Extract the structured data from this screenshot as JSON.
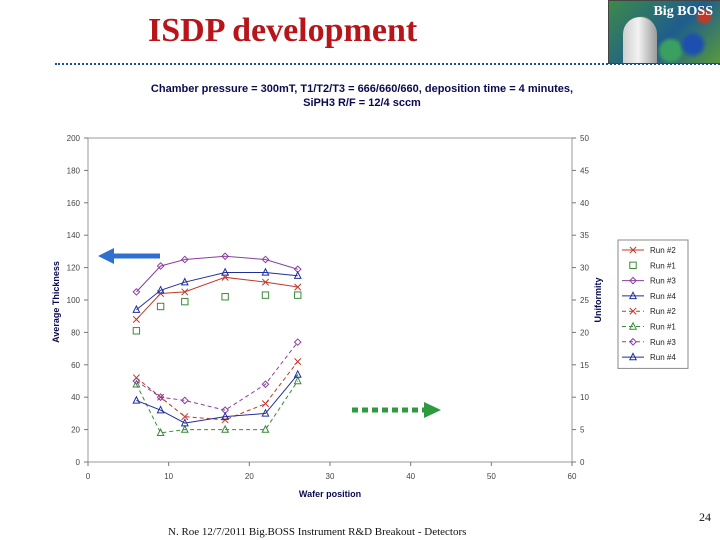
{
  "slide": {
    "title": "ISDP development",
    "logo_text": "Big BOSS",
    "page_number": "24",
    "footer": "N. Roe 12/7/2011 Big.BOSS Instrument R&D Breakout - Detectors"
  },
  "colors": {
    "title": "#b8151b",
    "rule": "#1b4fa0",
    "axis_label": "#0a0a50",
    "left_arrow": "#2f6fd0",
    "right_arrow": "#2e9a40"
  },
  "chart_data": {
    "type": "line",
    "title_lines": [
      "Chamber pressure = 300mT, T1/T2/T3 = 666/660/660, deposition time = 4 minutes,",
      "SiPH3 R/F = 12/4 sccm"
    ],
    "xlabel": "Wafer position",
    "ylabel": "Average Thickness",
    "y2label": "Uniformity",
    "xlim": [
      0,
      60
    ],
    "ylim": [
      0,
      200
    ],
    "y2lim": [
      0,
      50
    ],
    "xticks": [
      "0",
      "10",
      "20",
      "30",
      "40",
      "50",
      "60"
    ],
    "yticks": [
      "0",
      "20",
      "40",
      "60",
      "80",
      "100",
      "120",
      "140",
      "160",
      "180",
      "200"
    ],
    "y2ticks": [
      "0",
      "5",
      "10",
      "15",
      "20",
      "25",
      "30",
      "35",
      "40",
      "45",
      "50"
    ],
    "grid": false,
    "legend_position": "right",
    "arrows": [
      {
        "direction": "left",
        "meaning": "left axis",
        "color": "#2f6fd0"
      },
      {
        "direction": "right",
        "meaning": "right axis",
        "color": "#2e9a40"
      }
    ],
    "series": [
      {
        "name": "Run #2",
        "axis": "left",
        "color": "#c0392b",
        "dash": "solid",
        "marker": "x",
        "x": [
          6,
          9,
          12,
          17,
          22,
          26
        ],
        "y": [
          88,
          104,
          105,
          114,
          111,
          108
        ]
      },
      {
        "name": "Run #1",
        "axis": "left",
        "color": "#3a8a3a",
        "dash": "none",
        "marker": "square",
        "x": [
          6,
          9,
          12,
          17,
          22,
          26
        ],
        "y": [
          81,
          96,
          99,
          102,
          103,
          103
        ]
      },
      {
        "name": "Run #3",
        "axis": "left",
        "color": "#8a3fa0",
        "dash": "solid",
        "marker": "diamond",
        "x": [
          6,
          9,
          12,
          17,
          22,
          26
        ],
        "y": [
          105,
          121,
          125,
          127,
          125,
          119
        ]
      },
      {
        "name": "Run #4",
        "axis": "left",
        "color": "#1f2f9a",
        "dash": "solid",
        "marker": "triangle",
        "x": [
          6,
          9,
          12,
          17,
          22,
          26
        ],
        "y": [
          94,
          106,
          111,
          117,
          117,
          115
        ]
      },
      {
        "name": "Run #2",
        "axis": "right",
        "color": "#c0392b",
        "dash": "dash",
        "marker": "x",
        "x": [
          6,
          9,
          12,
          17,
          22,
          26
        ],
        "y": [
          13,
          10,
          7,
          6.5,
          9,
          15.5
        ]
      },
      {
        "name": "Run #1",
        "axis": "right",
        "color": "#3a8a3a",
        "dash": "dash",
        "marker": "triangle",
        "x": [
          6,
          9,
          12,
          17,
          22,
          26
        ],
        "y": [
          12,
          4.5,
          5,
          5,
          5,
          12.5
        ]
      },
      {
        "name": "Run #3",
        "axis": "right",
        "color": "#8a3fa0",
        "dash": "dash",
        "marker": "diamond",
        "x": [
          6,
          9,
          12,
          17,
          22,
          26
        ],
        "y": [
          12.5,
          10,
          9.5,
          8,
          12,
          18.5
        ]
      },
      {
        "name": "Run #4",
        "axis": "right",
        "color": "#1f2f9a",
        "dash": "solid",
        "marker": "triangle",
        "x": [
          6,
          9,
          12,
          17,
          22,
          26
        ],
        "y": [
          9.5,
          8,
          6,
          7,
          7.5,
          13.5
        ]
      }
    ]
  }
}
